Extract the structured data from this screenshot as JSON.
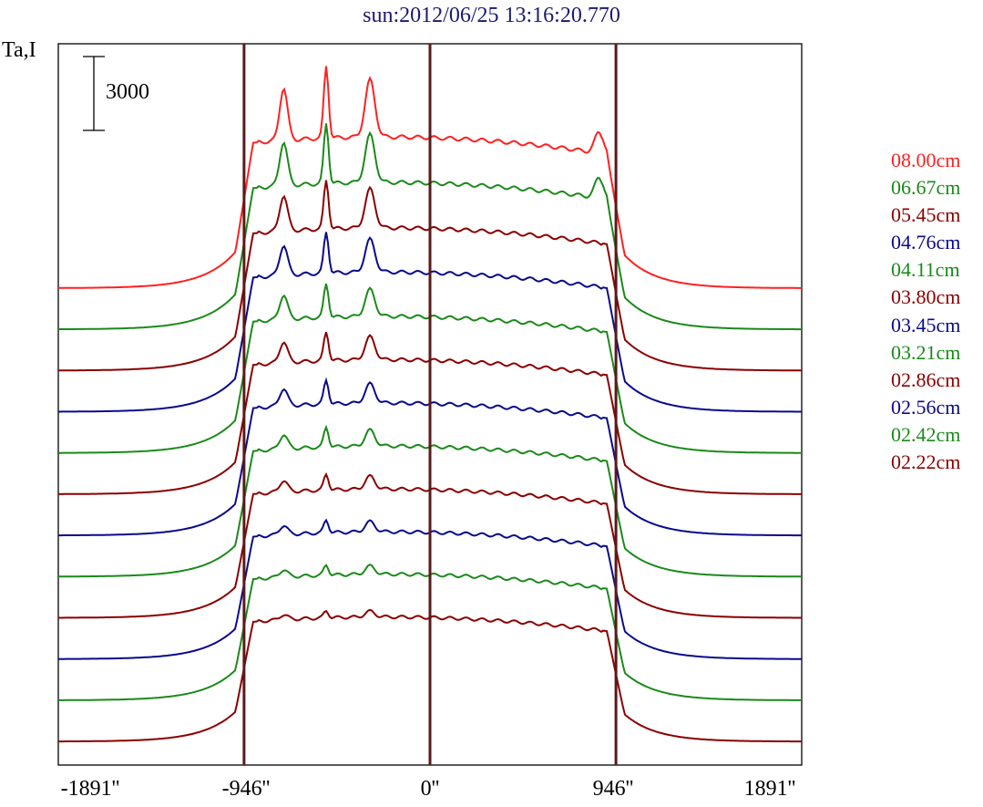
{
  "title": "sun:2012/06/25 13:16:20.770",
  "ylabel": "Ta,I",
  "scale_bar_label": "3000",
  "x_tick_labels": [
    "-1891''",
    "-946''",
    "0''",
    "946''",
    "1891''"
  ],
  "colors": {
    "red": "#ff2020",
    "green": "#1a8a1a",
    "darkred": "#8b0000",
    "blue": "#0a0a8c",
    "axis": "#000000",
    "marker": "#5a1a1a"
  },
  "chart_data": {
    "type": "line",
    "title": "sun:2012/06/25 13:16:20.770",
    "xlabel": "",
    "ylabel": "Ta,I",
    "xlim": [
      -1891,
      1891
    ],
    "x_ticks": [
      -1891,
      -946,
      0,
      946,
      1891
    ],
    "vertical_markers": [
      -946,
      0,
      946
    ],
    "scale_bar": 3000,
    "series": [
      {
        "name": "08.00cm",
        "color": "#ff2020",
        "level": 1.0
      },
      {
        "name": "06.67cm",
        "color": "#1a8a1a",
        "level": 0.86
      },
      {
        "name": "05.45cm",
        "color": "#8b0000",
        "level": 0.72
      },
      {
        "name": "04.76cm",
        "color": "#0a0a8c",
        "level": 0.62
      },
      {
        "name": "04.11cm",
        "color": "#1a8a1a",
        "level": 0.52
      },
      {
        "name": "03.80cm",
        "color": "#8b0000",
        "level": 0.45
      },
      {
        "name": "03.45cm",
        "color": "#0a0a8c",
        "level": 0.38
      },
      {
        "name": "03.21cm",
        "color": "#1a8a1a",
        "level": 0.32
      },
      {
        "name": "02.86cm",
        "color": "#8b0000",
        "level": 0.26
      },
      {
        "name": "02.56cm",
        "color": "#0a0a8c",
        "level": 0.21
      },
      {
        "name": "02.42cm",
        "color": "#1a8a1a",
        "level": 0.17
      },
      {
        "name": "02.22cm",
        "color": "#8b0000",
        "level": 0.12
      }
    ]
  }
}
